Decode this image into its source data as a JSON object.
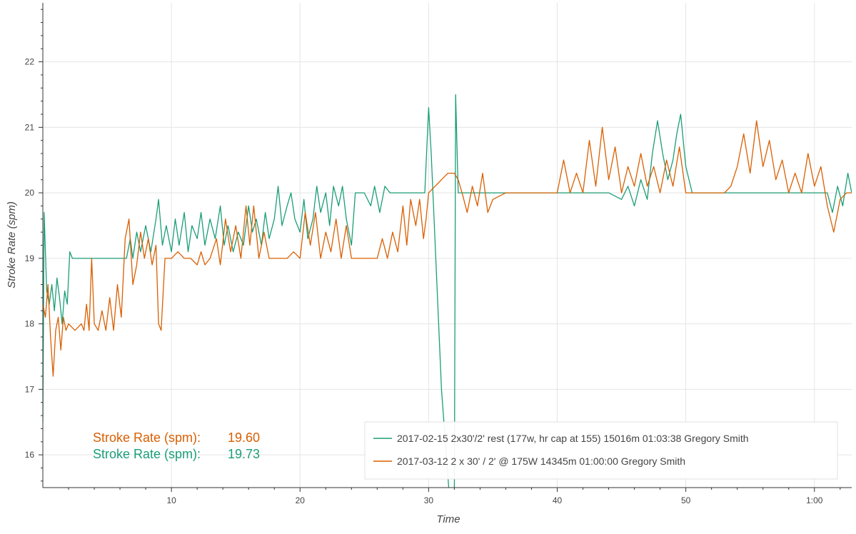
{
  "chart_data": {
    "type": "line",
    "xlabel": "Time",
    "ylabel": "Stroke Rate (spm)",
    "xlim": [
      0,
      62.9
    ],
    "ylim": [
      15.5,
      22.9
    ],
    "x_ticks": [
      {
        "value": 10,
        "label": "10"
      },
      {
        "value": 20,
        "label": "20"
      },
      {
        "value": 30,
        "label": "30"
      },
      {
        "value": 40,
        "label": "40"
      },
      {
        "value": 50,
        "label": "50"
      },
      {
        "value": 60,
        "label": "1:00"
      }
    ],
    "y_ticks": [
      {
        "value": 16,
        "label": "16"
      },
      {
        "value": 17,
        "label": "17"
      },
      {
        "value": 18,
        "label": "18"
      },
      {
        "value": 19,
        "label": "19"
      },
      {
        "value": 20,
        "label": "20"
      },
      {
        "value": 21,
        "label": "21"
      },
      {
        "value": 22,
        "label": "22"
      }
    ],
    "grid": true,
    "legend_position": "bottom-right",
    "series": [
      {
        "name": "2017-02-15 2x30'/2' rest (177w, hr cap at 155) 15016m 01:03:38 Gregory Smith",
        "color": "#1b9e77",
        "points": [
          [
            0.0,
            16.5
          ],
          [
            0.1,
            19.7
          ],
          [
            0.3,
            18.5
          ],
          [
            0.5,
            18.3
          ],
          [
            0.7,
            18.6
          ],
          [
            0.9,
            18.2
          ],
          [
            1.1,
            18.7
          ],
          [
            1.3,
            18.4
          ],
          [
            1.5,
            18.0
          ],
          [
            1.7,
            18.5
          ],
          [
            1.9,
            18.3
          ],
          [
            2.1,
            19.1
          ],
          [
            2.3,
            19.0
          ],
          [
            3.0,
            19.0
          ],
          [
            6.5,
            19.0
          ],
          [
            6.8,
            19.3
          ],
          [
            7.0,
            19.0
          ],
          [
            7.3,
            19.4
          ],
          [
            7.6,
            19.1
          ],
          [
            8.0,
            19.5
          ],
          [
            8.4,
            19.1
          ],
          [
            8.8,
            19.6
          ],
          [
            9.0,
            19.9
          ],
          [
            9.3,
            19.2
          ],
          [
            9.6,
            19.5
          ],
          [
            10.0,
            19.1
          ],
          [
            10.3,
            19.6
          ],
          [
            10.6,
            19.2
          ],
          [
            11.0,
            19.7
          ],
          [
            11.3,
            19.1
          ],
          [
            11.6,
            19.5
          ],
          [
            12.0,
            19.3
          ],
          [
            12.3,
            19.7
          ],
          [
            12.6,
            19.2
          ],
          [
            13.0,
            19.6
          ],
          [
            13.4,
            19.3
          ],
          [
            13.8,
            19.8
          ],
          [
            14.1,
            19.2
          ],
          [
            14.4,
            19.5
          ],
          [
            14.8,
            19.1
          ],
          [
            15.2,
            19.4
          ],
          [
            15.6,
            19.2
          ],
          [
            16.0,
            19.8
          ],
          [
            16.3,
            19.4
          ],
          [
            16.6,
            19.6
          ],
          [
            17.0,
            19.2
          ],
          [
            17.3,
            19.7
          ],
          [
            17.6,
            19.3
          ],
          [
            18.0,
            19.6
          ],
          [
            18.3,
            20.1
          ],
          [
            18.6,
            19.5
          ],
          [
            19.0,
            19.8
          ],
          [
            19.3,
            20.0
          ],
          [
            19.6,
            19.6
          ],
          [
            20.0,
            19.4
          ],
          [
            20.3,
            19.9
          ],
          [
            20.6,
            19.3
          ],
          [
            21.0,
            19.6
          ],
          [
            21.3,
            20.1
          ],
          [
            21.6,
            19.7
          ],
          [
            22.0,
            20.0
          ],
          [
            22.3,
            19.5
          ],
          [
            22.6,
            20.1
          ],
          [
            23.0,
            19.8
          ],
          [
            23.3,
            20.1
          ],
          [
            23.6,
            19.6
          ],
          [
            24.0,
            19.2
          ],
          [
            24.3,
            20.0
          ],
          [
            25.0,
            20.0
          ],
          [
            25.5,
            19.8
          ],
          [
            25.8,
            20.1
          ],
          [
            26.2,
            19.7
          ],
          [
            26.6,
            20.1
          ],
          [
            27.0,
            20.0
          ],
          [
            28.0,
            20.0
          ],
          [
            29.0,
            20.0
          ],
          [
            29.7,
            20.0
          ],
          [
            30.0,
            21.3
          ],
          [
            30.2,
            20.6
          ],
          [
            31.0,
            17.0
          ],
          [
            31.6,
            15.4
          ],
          [
            32.0,
            15.4
          ],
          [
            32.1,
            21.5
          ],
          [
            32.3,
            20.0
          ],
          [
            33.0,
            20.0
          ],
          [
            40.0,
            20.0
          ],
          [
            44.0,
            20.0
          ],
          [
            45.0,
            19.9
          ],
          [
            45.5,
            20.1
          ],
          [
            46.0,
            19.8
          ],
          [
            46.5,
            20.2
          ],
          [
            47.0,
            19.9
          ],
          [
            47.4,
            20.6
          ],
          [
            47.8,
            21.1
          ],
          [
            48.2,
            20.6
          ],
          [
            48.6,
            20.2
          ],
          [
            49.0,
            20.5
          ],
          [
            49.3,
            20.9
          ],
          [
            49.6,
            21.2
          ],
          [
            50.0,
            20.4
          ],
          [
            50.5,
            20.0
          ],
          [
            51.0,
            20.0
          ],
          [
            55.0,
            20.0
          ],
          [
            60.0,
            20.0
          ],
          [
            61.0,
            20.0
          ],
          [
            61.4,
            19.7
          ],
          [
            61.8,
            20.1
          ],
          [
            62.2,
            19.8
          ],
          [
            62.6,
            20.3
          ],
          [
            62.9,
            20.0
          ]
        ]
      },
      {
        "name": "2017-03-12 2 x 30' / 2' @ 175W 14345m 01:00:00 Gregory Smith",
        "color": "#d95f02",
        "points": [
          [
            0.0,
            18.3
          ],
          [
            0.2,
            18.1
          ],
          [
            0.4,
            18.6
          ],
          [
            0.6,
            17.8
          ],
          [
            0.8,
            17.2
          ],
          [
            1.0,
            17.9
          ],
          [
            1.2,
            18.1
          ],
          [
            1.4,
            17.6
          ],
          [
            1.6,
            18.1
          ],
          [
            1.8,
            17.9
          ],
          [
            2.0,
            18.0
          ],
          [
            2.5,
            17.9
          ],
          [
            3.0,
            18.0
          ],
          [
            3.2,
            17.9
          ],
          [
            3.4,
            18.3
          ],
          [
            3.6,
            17.9
          ],
          [
            3.8,
            19.0
          ],
          [
            4.0,
            18.0
          ],
          [
            4.3,
            17.9
          ],
          [
            4.6,
            18.2
          ],
          [
            4.9,
            17.9
          ],
          [
            5.2,
            18.4
          ],
          [
            5.5,
            17.9
          ],
          [
            5.8,
            18.6
          ],
          [
            6.1,
            18.1
          ],
          [
            6.4,
            19.3
          ],
          [
            6.7,
            19.6
          ],
          [
            7.0,
            18.6
          ],
          [
            7.3,
            18.9
          ],
          [
            7.6,
            19.4
          ],
          [
            7.9,
            19.0
          ],
          [
            8.2,
            19.3
          ],
          [
            8.5,
            18.9
          ],
          [
            8.8,
            19.2
          ],
          [
            9.0,
            18.0
          ],
          [
            9.2,
            17.9
          ],
          [
            9.5,
            19.0
          ],
          [
            10.0,
            19.0
          ],
          [
            10.5,
            19.1
          ],
          [
            11.0,
            19.0
          ],
          [
            11.5,
            19.0
          ],
          [
            12.0,
            18.9
          ],
          [
            12.3,
            19.1
          ],
          [
            12.6,
            18.9
          ],
          [
            13.0,
            19.0
          ],
          [
            13.5,
            19.3
          ],
          [
            13.8,
            18.9
          ],
          [
            14.2,
            19.6
          ],
          [
            14.6,
            19.1
          ],
          [
            15.0,
            19.5
          ],
          [
            15.4,
            19.0
          ],
          [
            15.8,
            19.8
          ],
          [
            16.1,
            19.2
          ],
          [
            16.4,
            19.8
          ],
          [
            16.8,
            19.0
          ],
          [
            17.2,
            19.4
          ],
          [
            17.6,
            19.0
          ],
          [
            18.0,
            19.0
          ],
          [
            18.5,
            19.0
          ],
          [
            19.0,
            19.0
          ],
          [
            19.5,
            19.1
          ],
          [
            20.0,
            19.0
          ],
          [
            20.4,
            19.7
          ],
          [
            20.8,
            19.2
          ],
          [
            21.2,
            19.7
          ],
          [
            21.6,
            19.0
          ],
          [
            22.0,
            19.4
          ],
          [
            22.4,
            19.1
          ],
          [
            22.8,
            19.6
          ],
          [
            23.2,
            19.0
          ],
          [
            23.6,
            19.5
          ],
          [
            24.0,
            19.0
          ],
          [
            25.0,
            19.0
          ],
          [
            26.0,
            19.0
          ],
          [
            26.4,
            19.3
          ],
          [
            26.8,
            19.0
          ],
          [
            27.2,
            19.4
          ],
          [
            27.6,
            19.1
          ],
          [
            28.0,
            19.8
          ],
          [
            28.3,
            19.2
          ],
          [
            28.6,
            19.9
          ],
          [
            29.0,
            19.5
          ],
          [
            29.3,
            19.9
          ],
          [
            29.6,
            19.3
          ],
          [
            29.8,
            19.6
          ],
          [
            30.0,
            20.0
          ],
          [
            30.5,
            20.1
          ],
          [
            31.0,
            20.2
          ],
          [
            31.5,
            20.3
          ],
          [
            32.0,
            20.3
          ],
          [
            32.3,
            20.2
          ],
          [
            32.6,
            20.0
          ],
          [
            33.0,
            19.7
          ],
          [
            33.4,
            20.1
          ],
          [
            33.8,
            19.8
          ],
          [
            34.2,
            20.3
          ],
          [
            34.6,
            19.7
          ],
          [
            35.0,
            19.9
          ],
          [
            36.0,
            20.0
          ],
          [
            37.0,
            20.0
          ],
          [
            38.0,
            20.0
          ],
          [
            39.0,
            20.0
          ],
          [
            40.0,
            20.0
          ],
          [
            40.5,
            20.5
          ],
          [
            41.0,
            20.0
          ],
          [
            41.5,
            20.3
          ],
          [
            42.0,
            20.0
          ],
          [
            42.5,
            20.8
          ],
          [
            43.0,
            20.1
          ],
          [
            43.5,
            21.0
          ],
          [
            44.0,
            20.2
          ],
          [
            44.5,
            20.7
          ],
          [
            45.0,
            20.0
          ],
          [
            45.5,
            20.4
          ],
          [
            46.0,
            20.1
          ],
          [
            46.5,
            20.6
          ],
          [
            47.0,
            20.1
          ],
          [
            47.5,
            20.4
          ],
          [
            48.0,
            20.0
          ],
          [
            48.5,
            20.5
          ],
          [
            49.0,
            20.1
          ],
          [
            49.5,
            20.7
          ],
          [
            50.0,
            20.0
          ],
          [
            51.0,
            20.0
          ],
          [
            52.0,
            20.0
          ],
          [
            53.0,
            20.0
          ],
          [
            53.5,
            20.1
          ],
          [
            54.0,
            20.4
          ],
          [
            54.5,
            20.9
          ],
          [
            55.0,
            20.3
          ],
          [
            55.5,
            21.1
          ],
          [
            56.0,
            20.4
          ],
          [
            56.5,
            20.8
          ],
          [
            57.0,
            20.2
          ],
          [
            57.5,
            20.5
          ],
          [
            58.0,
            20.0
          ],
          [
            58.5,
            20.3
          ],
          [
            59.0,
            20.0
          ],
          [
            59.5,
            20.6
          ],
          [
            60.0,
            20.1
          ],
          [
            60.5,
            20.4
          ],
          [
            61.0,
            19.8
          ],
          [
            61.5,
            19.4
          ],
          [
            62.0,
            19.9
          ],
          [
            62.5,
            20.0
          ],
          [
            62.9,
            20.0
          ]
        ]
      }
    ],
    "annotations": [
      {
        "label": "Stroke Rate (spm):",
        "value": "19.60",
        "color": "#d95f02"
      },
      {
        "label": "Stroke Rate (spm):",
        "value": "19.73",
        "color": "#1b9e77"
      }
    ]
  }
}
